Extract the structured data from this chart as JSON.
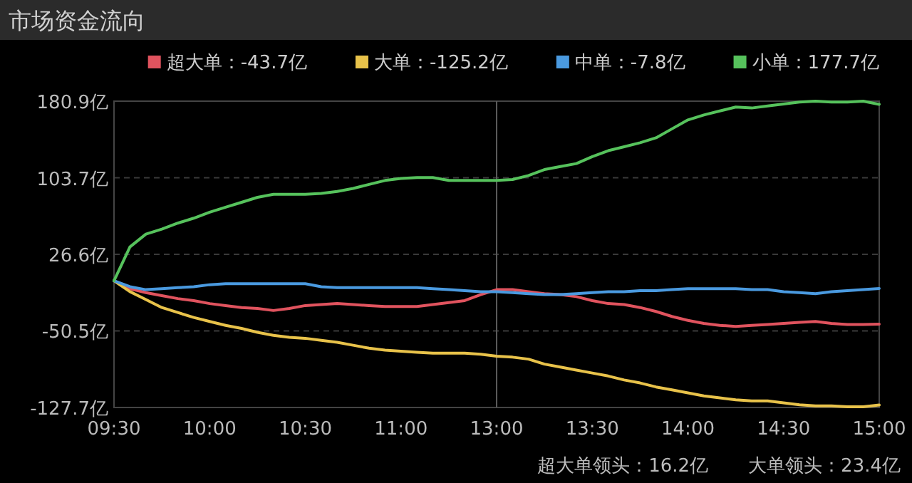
{
  "chart_data": {
    "type": "line",
    "title": "市场资金流向",
    "categories": [
      "09:30",
      null,
      null,
      null,
      null,
      null,
      "10:00",
      null,
      null,
      null,
      null,
      null,
      "10:30",
      null,
      null,
      null,
      null,
      null,
      "11:00",
      null,
      null,
      null,
      null,
      null,
      "13:00",
      null,
      null,
      null,
      null,
      null,
      "13:30",
      null,
      null,
      null,
      null,
      null,
      "14:00",
      null,
      null,
      null,
      null,
      null,
      "14:30",
      null,
      null,
      null,
      null,
      null,
      "15:00"
    ],
    "ylim": [
      -127.7,
      180.9
    ],
    "yticks": [
      {
        "value": -127.7,
        "label": "-127.7亿"
      },
      {
        "value": -50.5,
        "label": "-50.5亿"
      },
      {
        "value": 26.6,
        "label": "26.6亿"
      },
      {
        "value": 103.7,
        "label": "103.7亿"
      },
      {
        "value": 180.9,
        "label": "180.9亿"
      }
    ],
    "grid": "y",
    "legend": "top",
    "series": [
      {
        "name": "超大单：-43.7亿",
        "color": "#e0535e",
        "values": [
          0,
          -8,
          -12,
          -15,
          -18,
          -20,
          -23,
          -25,
          -27,
          -28,
          -30,
          -28,
          -25,
          -24,
          -23,
          -24,
          -25,
          -26,
          -26,
          -26,
          -24,
          -22,
          -20,
          -14,
          -9,
          -9,
          -11,
          -13,
          -14,
          -16,
          -20,
          -23,
          -24,
          -27,
          -31,
          -36,
          -40,
          -43,
          -45,
          -46,
          -45,
          -44,
          -43,
          -42,
          -41,
          -43,
          -44,
          -44,
          -43.7
        ]
      },
      {
        "name": "大单：-125.2亿",
        "color": "#e8c24a",
        "values": [
          0,
          -11,
          -19,
          -27,
          -32,
          -37,
          -41,
          -45,
          -48,
          -52,
          -55,
          -57,
          -58,
          -60,
          -62,
          -65,
          -68,
          -70,
          -71,
          -72,
          -73,
          -73,
          -73,
          -74,
          -76,
          -77,
          -79,
          -84,
          -87,
          -90,
          -93,
          -96,
          -100,
          -103,
          -107,
          -110,
          -113,
          -116,
          -118,
          -120,
          -121,
          -121,
          -123,
          -125,
          -126,
          -126,
          -127,
          -127,
          -125.2
        ]
      },
      {
        "name": "中单：-7.8亿",
        "color": "#4a9ae0",
        "values": [
          0,
          -6,
          -9,
          -8,
          -7,
          -6,
          -4,
          -3,
          -3,
          -3,
          -3,
          -3,
          -3,
          -6,
          -7,
          -7,
          -7,
          -7,
          -7,
          -7,
          -8,
          -9,
          -10,
          -11,
          -11,
          -12,
          -13,
          -14,
          -14,
          -13,
          -12,
          -11,
          -11,
          -10,
          -10,
          -9,
          -8,
          -8,
          -8,
          -8,
          -9,
          -9,
          -11,
          -12,
          -13,
          -11,
          -10,
          -9,
          -7.8
        ]
      },
      {
        "name": "小单：177.7亿",
        "color": "#56c25c",
        "values": [
          0,
          34,
          47,
          52,
          58,
          63,
          69,
          74,
          79,
          84,
          87,
          87,
          87,
          88,
          90,
          93,
          97,
          101,
          103,
          104,
          104,
          101,
          101,
          101,
          101,
          102,
          106,
          112,
          115,
          118,
          125,
          131,
          135,
          139,
          144,
          153,
          162,
          167,
          171,
          175,
          174,
          176,
          178,
          180,
          180.9,
          180,
          180,
          180.9,
          177.7
        ]
      }
    ],
    "ref_lines": [
      {
        "axis": "x",
        "value": "13:00",
        "color": "#5a5a5a"
      }
    ],
    "annotations": [
      "超大单领头：16.2亿",
      "大单领头：23.4亿"
    ]
  }
}
